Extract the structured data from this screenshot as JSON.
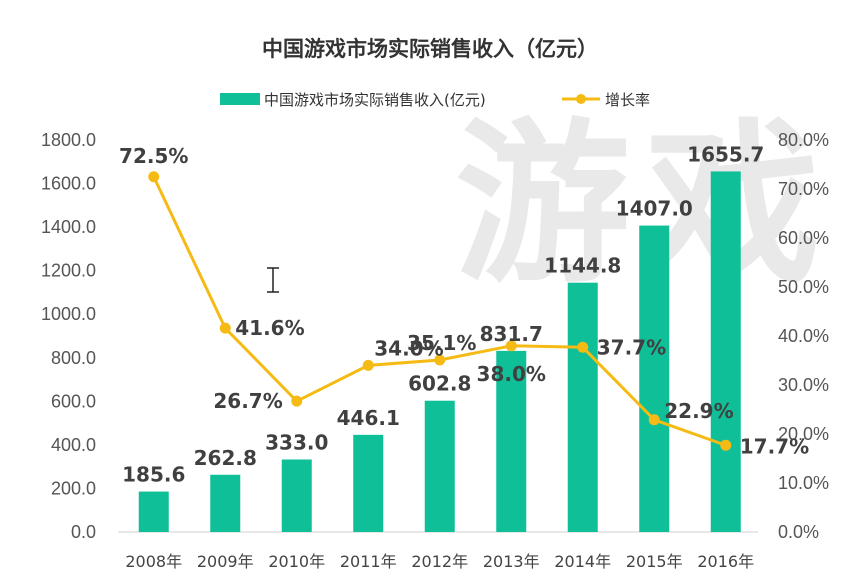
{
  "chart_data": {
    "type": "bar",
    "title": "中国游戏市场实际销售收入（亿元）",
    "categories": [
      "2008年",
      "2009年",
      "2010年",
      "2011年",
      "2012年",
      "2013年",
      "2014年",
      "2015年",
      "2016年"
    ],
    "series": [
      {
        "name": "中国游戏市场实际销售收入(亿元)",
        "type": "bar",
        "axis": "left",
        "values": [
          185.6,
          262.8,
          333.0,
          446.1,
          602.8,
          831.7,
          1144.8,
          1407.0,
          1655.7
        ],
        "labels": [
          "185.6",
          "262.8",
          "333.0",
          "446.1",
          "602.8",
          "831.7",
          "1144.8",
          "1407.0",
          "1655.7"
        ],
        "color": "#0fbf98"
      },
      {
        "name": "增长率",
        "type": "line",
        "axis": "right",
        "values": [
          72.5,
          41.6,
          26.7,
          34.0,
          35.1,
          38.0,
          37.7,
          22.9,
          17.7
        ],
        "labels": [
          "72.5%",
          "41.6%",
          "26.7%",
          "34.0%",
          "35.1%",
          "38.0%",
          "37.7%",
          "22.9%",
          "17.7%"
        ],
        "color": "#f5bb14"
      }
    ],
    "y_left": {
      "lim": [
        0,
        1800
      ],
      "ticks": [
        "0.0",
        "200.0",
        "400.0",
        "600.0",
        "800.0",
        "1000.0",
        "1200.0",
        "1400.0",
        "1600.0",
        "1800.0"
      ]
    },
    "y_right": {
      "lim": [
        0,
        80
      ],
      "ticks": [
        "0.0%",
        "10.0%",
        "20.0%",
        "30.0%",
        "40.0%",
        "50.0%",
        "60.0%",
        "70.0%",
        "80.0%"
      ]
    },
    "legend_position": "top-center",
    "grid": false,
    "watermark": "游戏"
  }
}
